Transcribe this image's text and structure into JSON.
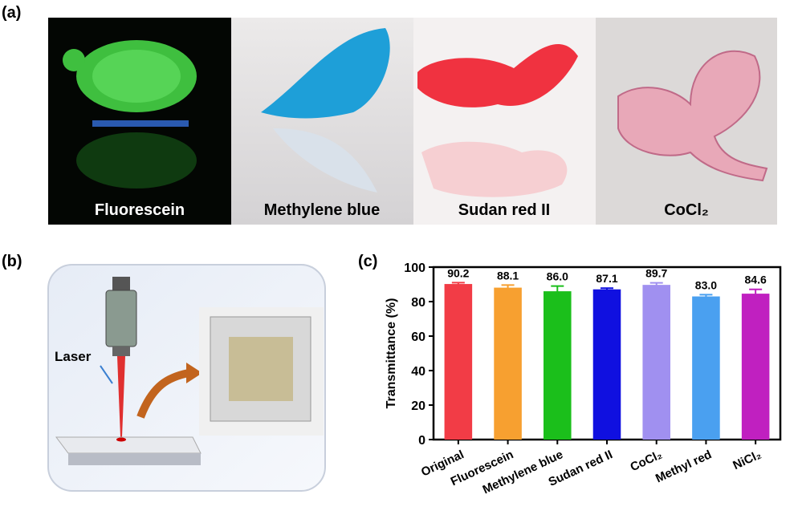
{
  "panel_labels": [
    "(a)",
    "(b)",
    "(c)"
  ],
  "photos": [
    {
      "label": "Fluorescein"
    },
    {
      "label": "Methylene blue"
    },
    {
      "label": "Sudan red II"
    },
    {
      "label": "CoCl₂"
    }
  ],
  "diagram": {
    "label": "Laser"
  },
  "chart_data": {
    "type": "bar",
    "ylabel": "Transmittance (%)",
    "categories": [
      "Original",
      "Fluorescein",
      "Methylene blue",
      "Sudan red II",
      "CoCl₂",
      "Methyl red",
      "NiCl₂"
    ],
    "values": [
      90.2,
      88.1,
      86.0,
      87.1,
      89.7,
      83.0,
      84.6
    ],
    "value_labels": [
      "90.2",
      "88.1",
      "86.0",
      "87.1",
      "89.7",
      "83.0",
      "84.6"
    ],
    "errors": [
      0.8,
      1.5,
      3,
      0.7,
      1.2,
      1,
      2.5
    ],
    "colors": [
      "#f23c46",
      "#f7a030",
      "#1bbf1b",
      "#1010e0",
      "#a090f0",
      "#4aa0f0",
      "#c020c0"
    ],
    "ylim": [
      0,
      100
    ],
    "yticks": [
      0,
      20,
      40,
      60,
      80,
      100
    ]
  }
}
